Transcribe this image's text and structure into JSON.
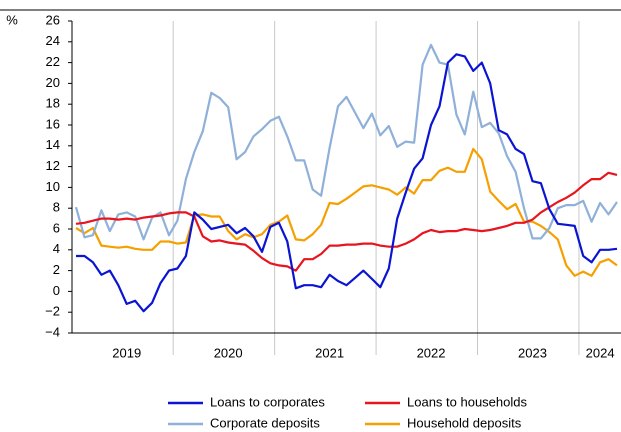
{
  "chart_data": {
    "type": "line",
    "y_unit": "%",
    "categories": [
      null,
      null,
      null,
      null,
      null,
      null,
      "2019",
      null,
      null,
      null,
      null,
      null,
      null,
      null,
      null,
      null,
      null,
      null,
      "2020",
      null,
      null,
      null,
      null,
      null,
      null,
      null,
      null,
      null,
      null,
      null,
      "2021",
      null,
      null,
      null,
      null,
      null,
      null,
      null,
      null,
      null,
      null,
      null,
      "2022",
      null,
      null,
      null,
      null,
      null,
      null,
      null,
      null,
      null,
      null,
      null,
      "2023",
      null,
      null,
      null,
      null,
      null,
      null,
      null,
      "2024",
      null,
      null
    ],
    "series": [
      {
        "name": "Loans to corporates",
        "color": "#0a14d2",
        "values": [
          3.4,
          3.4,
          2.8,
          1.6,
          2.0,
          0.6,
          -1.2,
          -0.9,
          -1.9,
          -1.1,
          0.8,
          2.0,
          2.2,
          3.4,
          7.6,
          6.9,
          6.0,
          6.2,
          6.4,
          5.6,
          6.1,
          5.3,
          3.8,
          6.2,
          6.6,
          4.8,
          0.3,
          0.6,
          0.6,
          0.4,
          1.6,
          1.0,
          0.6,
          1.3,
          2.0,
          1.2,
          0.4,
          2.2,
          7.0,
          9.5,
          11.8,
          12.8,
          16.0,
          17.8,
          22.0,
          22.8,
          22.6,
          21.2,
          22.0,
          20.0,
          15.5,
          15.1,
          13.7,
          13.2,
          10.6,
          10.4,
          7.9,
          6.5,
          6.4,
          6.3,
          3.4,
          2.8,
          4.0,
          4.0,
          4.1
        ]
      },
      {
        "name": "Loans to households",
        "color": "#e8141e",
        "values": [
          6.5,
          6.6,
          6.8,
          7.0,
          7.0,
          6.9,
          7.0,
          6.9,
          7.1,
          7.2,
          7.3,
          7.5,
          7.6,
          7.6,
          7.2,
          5.3,
          4.8,
          4.9,
          4.7,
          4.6,
          4.5,
          3.9,
          3.2,
          2.7,
          2.5,
          2.4,
          2.0,
          3.1,
          3.1,
          3.6,
          4.4,
          4.4,
          4.5,
          4.5,
          4.6,
          4.6,
          4.4,
          4.3,
          4.3,
          4.6,
          5.0,
          5.6,
          5.9,
          5.7,
          5.8,
          5.8,
          6.0,
          5.9,
          5.8,
          5.9,
          6.1,
          6.3,
          6.6,
          6.6,
          6.9,
          7.6,
          8.1,
          8.6,
          9.0,
          9.5,
          10.2,
          10.8,
          10.8,
          11.4,
          11.2
        ]
      },
      {
        "name": "Corporate deposits",
        "color": "#8fb0d8",
        "values": [
          8.1,
          5.2,
          5.4,
          7.8,
          5.8,
          7.4,
          7.6,
          7.2,
          5.0,
          7.1,
          7.6,
          5.4,
          6.8,
          10.8,
          13.4,
          15.4,
          19.1,
          18.6,
          17.7,
          12.7,
          13.4,
          14.9,
          15.6,
          16.4,
          16.8,
          14.9,
          12.6,
          12.6,
          9.8,
          9.2,
          13.8,
          17.8,
          18.7,
          17.2,
          15.7,
          17.1,
          15.0,
          15.9,
          13.9,
          14.4,
          14.3,
          21.8,
          23.7,
          22.0,
          21.8,
          17.0,
          15.1,
          19.2,
          15.8,
          16.2,
          15.2,
          13.0,
          11.5,
          8.0,
          5.1,
          5.1,
          6.1,
          8.0,
          8.3,
          8.3,
          8.7,
          6.7,
          8.5,
          7.4,
          8.6
        ]
      },
      {
        "name": "Household deposits",
        "color": "#f5a000",
        "values": [
          6.1,
          5.6,
          6.1,
          4.4,
          4.3,
          4.2,
          4.3,
          4.1,
          4.0,
          4.0,
          4.8,
          4.8,
          4.6,
          4.7,
          7.3,
          7.4,
          7.2,
          7.2,
          5.8,
          5.0,
          5.5,
          5.2,
          5.5,
          6.4,
          6.7,
          7.3,
          5.0,
          4.9,
          5.5,
          6.4,
          8.5,
          8.4,
          8.9,
          9.5,
          10.1,
          10.2,
          10.0,
          9.8,
          9.3,
          10.0,
          9.4,
          10.7,
          10.7,
          11.6,
          11.9,
          11.5,
          11.5,
          13.7,
          12.7,
          9.6,
          8.7,
          7.9,
          8.4,
          6.7,
          6.7,
          6.3,
          5.7,
          5.0,
          2.5,
          1.5,
          1.9,
          1.5,
          2.8,
          3.1,
          2.5
        ]
      }
    ],
    "ylim": [
      -4,
      26
    ],
    "yticks": [
      {
        "value": -4,
        "label": "−4"
      },
      {
        "value": -2,
        "label": "−2"
      },
      0,
      2,
      4,
      6,
      8,
      10,
      12,
      14,
      16,
      18,
      20,
      22,
      24,
      26
    ]
  }
}
